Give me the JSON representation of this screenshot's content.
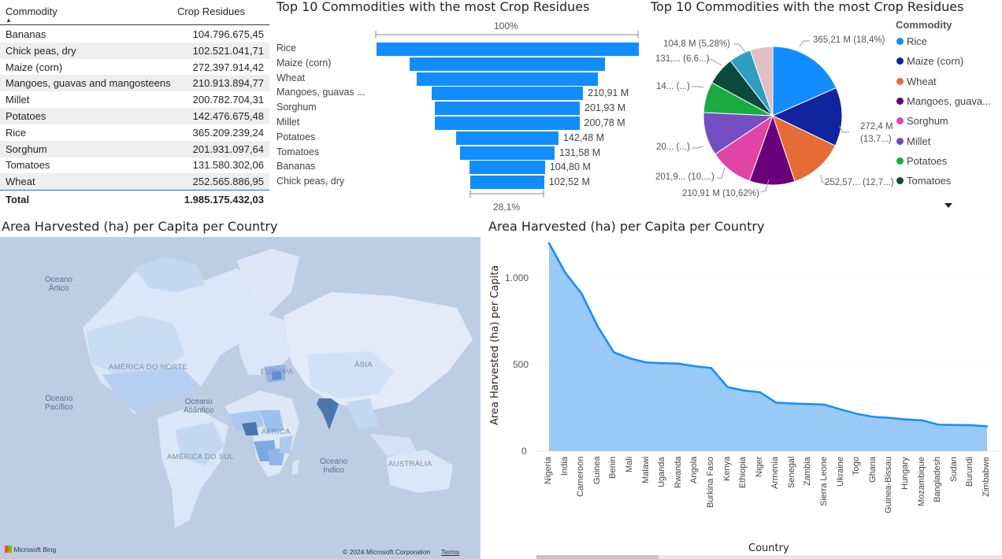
{
  "table": {
    "headers": {
      "commodity": "Commodity",
      "crop_residues": "Crop Residues"
    },
    "rows": [
      {
        "commodity": "Bananas",
        "value": "104.796.675,45"
      },
      {
        "commodity": "Chick peas, dry",
        "value": "102.521.041,71"
      },
      {
        "commodity": "Maize (corn)",
        "value": "272.397.914,42"
      },
      {
        "commodity": "Mangoes, guavas and mangosteens",
        "value": "210.913.894,77"
      },
      {
        "commodity": "Millet",
        "value": "200.782.704,31"
      },
      {
        "commodity": "Potatoes",
        "value": "142.476.675,48"
      },
      {
        "commodity": "Rice",
        "value": "365.209.239,24"
      },
      {
        "commodity": "Sorghum",
        "value": "201.931.097,64"
      },
      {
        "commodity": "Tomatoes",
        "value": "131.580.302,06"
      },
      {
        "commodity": "Wheat",
        "value": "252.565.886,95"
      }
    ],
    "total_label": "Total",
    "total_value": "1.985.175.432,03"
  },
  "funnel": {
    "title": "Top 10 Commodities with the most Crop Residues",
    "top_pct": "100%",
    "bottom_pct": "28,1%",
    "bar_color": "#118dff"
  },
  "pie": {
    "title": "Top 10 Commodities with the most Crop Residues",
    "legend_title": "Commodity",
    "legend": [
      {
        "label": "Rice",
        "color": "#118dff"
      },
      {
        "label": "Maize (corn)",
        "color": "#12239e"
      },
      {
        "label": "Wheat",
        "color": "#e66c37"
      },
      {
        "label": "Mangoes, guava...",
        "color": "#6b007b"
      },
      {
        "label": "Sorghum",
        "color": "#e044a7"
      },
      {
        "label": "Millet",
        "color": "#744ec2"
      },
      {
        "label": "Potatoes",
        "color": "#1aab40"
      },
      {
        "label": "Tomatoes",
        "color": "#0b4a3f"
      }
    ],
    "labels": {
      "rice": "365,21 M (18,4%)",
      "maize1": "272,4 M",
      "maize2": "(13,7...)",
      "wheat": "252,57... (12,7...)",
      "mangoes": "210,91 M (10,62%)",
      "sorghum": "201,9... (10,...)",
      "millet": "20... (...)",
      "potatoes": "14... (...)",
      "tomatoes": "131,... (6,6...)",
      "bananas": "104,8 M (5,28%)"
    }
  },
  "map": {
    "title": "Area Harvested (ha) per Capita per Country",
    "oceans": {
      "arctic": "Oceano\nÁrtico",
      "pacific": "Oceano\nPacífico",
      "atlantic": "Oceano\nAtlântico",
      "indian": "Oceano\nÍndico"
    },
    "continents": {
      "north_america": "AMÉRICA DO NORTE",
      "europe": "EUROPA",
      "asia": "ÁSIA",
      "africa": "ÁFRICA",
      "south_america": "AMÉRICA DO SUL",
      "australia": "AUSTRÁLIA"
    },
    "brand": "Microsoft Bing",
    "copyright": "© 2024 Microsoft Corporation",
    "terms": "Terms"
  },
  "area_chart": {
    "title": "Area Harvested (ha) per Capita per Country",
    "ylabel": "Area Harvested (ha) per Capita",
    "xlabel": "Country",
    "y_ticks": [
      "1.000",
      "500",
      "0"
    ]
  },
  "chart_data": [
    {
      "type": "bar",
      "subtype": "funnel",
      "title": "Top 10 Commodities with the most Crop Residues",
      "categories": [
        "Rice",
        "Maize (corn)",
        "Wheat",
        "Mangoes, guavas ...",
        "Sorghum",
        "Millet",
        "Potatoes",
        "Tomatoes",
        "Bananas",
        "Chick peas, dry"
      ],
      "values": [
        365.21,
        272.4,
        252.57,
        210.91,
        201.93,
        200.78,
        142.48,
        131.58,
        104.8,
        102.52
      ],
      "data_labels": [
        "",
        "",
        "",
        "210,91 M",
        "201,93 M",
        "200,78 M",
        "142,48 M",
        "131,58 M",
        "104,80 M",
        "102,52 M"
      ],
      "unit": "M"
    },
    {
      "type": "pie",
      "title": "Top 10 Commodities with the most Crop Residues",
      "categories": [
        "Rice",
        "Maize (corn)",
        "Wheat",
        "Mangoes, guavas and mangosteens",
        "Sorghum",
        "Millet",
        "Potatoes",
        "Tomatoes",
        "Chick peas, dry",
        "Bananas"
      ],
      "values": [
        365.21,
        272.4,
        252.57,
        210.91,
        201.93,
        200.78,
        142.48,
        131.58,
        102.52,
        104.8
      ],
      "colors": [
        "#118dff",
        "#12239e",
        "#e66c37",
        "#6b007b",
        "#e044a7",
        "#744ec2",
        "#1aab40",
        "#0b4a3f",
        "#2f9dbf",
        "#e0bfc4"
      ]
    },
    {
      "type": "area",
      "title": "Area Harvested (ha) per Capita per Country",
      "xlabel": "Country",
      "ylabel": "Area Harvested (ha) per Capita",
      "ylim": [
        0,
        1200
      ],
      "x": [
        "Nigeria",
        "India",
        "Cameroon",
        "Guinea",
        "Benin",
        "Mali",
        "Malawi",
        "Uganda",
        "Rwanda",
        "Angola",
        "Burkina Faso",
        "Kenya",
        "Ethiopia",
        "Niger",
        "Armenia",
        "Senegal",
        "Zambia",
        "Sierra Leone",
        "Ukraine",
        "Togo",
        "Ghana",
        "Guinea-Bissau",
        "Hungary",
        "Mozambique",
        "Bangladesh",
        "Sudan",
        "Burundi",
        "Zimbabwe"
      ],
      "values": [
        1200,
        1030,
        910,
        720,
        570,
        535,
        512,
        508,
        505,
        490,
        480,
        370,
        350,
        340,
        280,
        275,
        272,
        268,
        240,
        215,
        198,
        192,
        183,
        178,
        153,
        151,
        150,
        143
      ],
      "color": "#118dff",
      "fill": "#99c9f7"
    }
  ]
}
